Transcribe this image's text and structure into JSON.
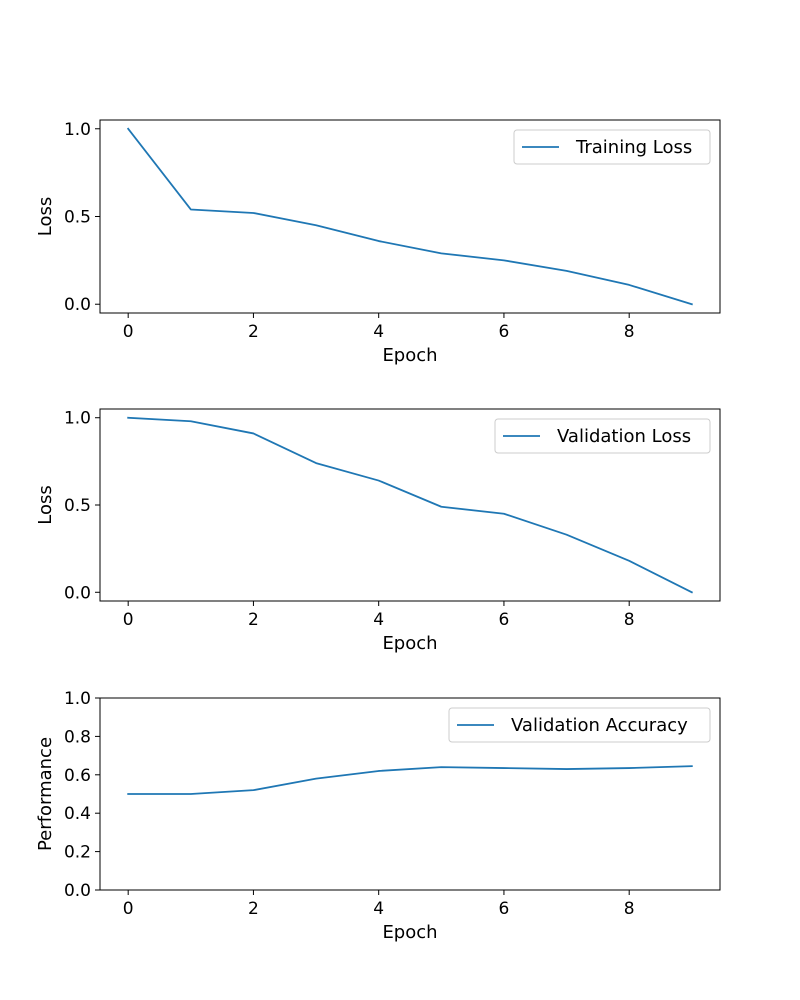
{
  "chart_data": [
    {
      "type": "line",
      "xlabel": "Epoch",
      "ylabel": "Loss",
      "xlim": [
        -0.45,
        9.45
      ],
      "ylim": [
        -0.05,
        1.05
      ],
      "xticks": [
        0,
        2,
        4,
        6,
        8
      ],
      "yticks": [
        0.0,
        0.5,
        1.0
      ],
      "ytick_labels": [
        "0.0",
        "0.5",
        "1.0"
      ],
      "grid": false,
      "legend_position": "top-right",
      "series": [
        {
          "name": "Training Loss",
          "color": "#1f77b4",
          "x": [
            0,
            1,
            2,
            3,
            4,
            5,
            6,
            7,
            8,
            9
          ],
          "y": [
            1.0,
            0.54,
            0.52,
            0.45,
            0.36,
            0.29,
            0.25,
            0.19,
            0.11,
            0.0
          ]
        }
      ]
    },
    {
      "type": "line",
      "xlabel": "Epoch",
      "ylabel": "Loss",
      "xlim": [
        -0.45,
        9.45
      ],
      "ylim": [
        -0.05,
        1.05
      ],
      "xticks": [
        0,
        2,
        4,
        6,
        8
      ],
      "yticks": [
        0.0,
        0.5,
        1.0
      ],
      "ytick_labels": [
        "0.0",
        "0.5",
        "1.0"
      ],
      "grid": false,
      "legend_position": "top-right",
      "series": [
        {
          "name": "Validation Loss",
          "color": "#1f77b4",
          "x": [
            0,
            1,
            2,
            3,
            4,
            5,
            6,
            7,
            8,
            9
          ],
          "y": [
            1.0,
            0.98,
            0.91,
            0.74,
            0.64,
            0.49,
            0.45,
            0.33,
            0.18,
            0.0
          ]
        }
      ]
    },
    {
      "type": "line",
      "xlabel": "Epoch",
      "ylabel": "Performance",
      "xlim": [
        -0.45,
        9.45
      ],
      "ylim": [
        0.0,
        1.0
      ],
      "xticks": [
        0,
        2,
        4,
        6,
        8
      ],
      "yticks": [
        0.0,
        0.2,
        0.4,
        0.6,
        0.8,
        1.0
      ],
      "ytick_labels": [
        "0.0",
        "0.2",
        "0.4",
        "0.6",
        "0.8",
        "1.0"
      ],
      "grid": false,
      "legend_position": "top-right",
      "series": [
        {
          "name": "Validation Accuracy",
          "color": "#1f77b4",
          "x": [
            0,
            1,
            2,
            3,
            4,
            5,
            6,
            7,
            8,
            9
          ],
          "y": [
            0.5,
            0.5,
            0.52,
            0.58,
            0.62,
            0.64,
            0.635,
            0.63,
            0.635,
            0.645
          ]
        }
      ]
    }
  ]
}
